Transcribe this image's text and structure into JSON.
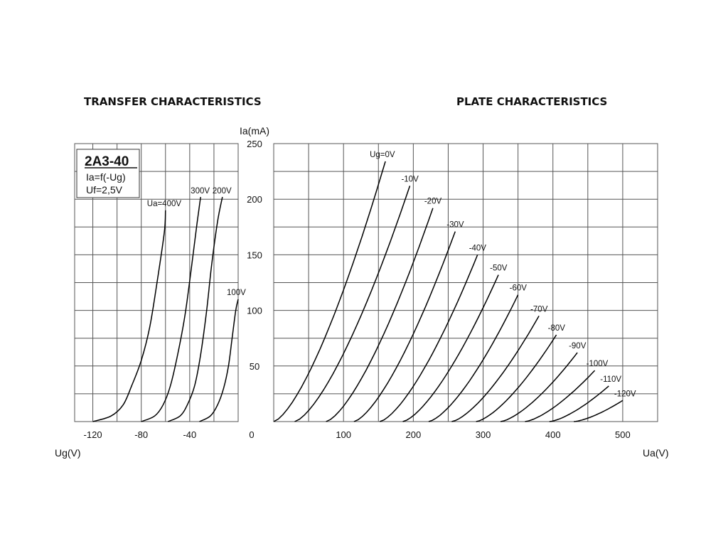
{
  "chart_data": [
    {
      "type": "line",
      "title": "TRANSFER CHARACTERISTICS",
      "xlabel": "Ug(V)",
      "ylabel": "",
      "xlim": [
        -135,
        0
      ],
      "ylim": [
        0,
        250
      ],
      "xticks": [
        -120,
        -80,
        -40
      ],
      "info_box": {
        "title": "2A3-40",
        "lines": [
          "Ia=f(-Ug)",
          "Uf=2,5V"
        ]
      },
      "series": [
        {
          "name": "Ua=400V",
          "label": "Ua=400V",
          "points": [
            [
              -120,
              0
            ],
            [
              -105,
              5
            ],
            [
              -95,
              15
            ],
            [
              -88,
              32
            ],
            [
              -80,
              55
            ],
            [
              -73,
              85
            ],
            [
              -67,
              125
            ],
            [
              -61,
              170
            ],
            [
              -60,
              190
            ]
          ]
        },
        {
          "name": "300V",
          "label": "300V",
          "points": [
            [
              -80,
              0
            ],
            [
              -69,
              5
            ],
            [
              -62,
              15
            ],
            [
              -56,
              32
            ],
            [
              -50,
              60
            ],
            [
              -44,
              95
            ],
            [
              -39,
              135
            ],
            [
              -34,
              178
            ],
            [
              -31,
              202
            ]
          ]
        },
        {
          "name": "200V",
          "label": "200V",
          "points": [
            [
              -58,
              0
            ],
            [
              -48,
              5
            ],
            [
              -42,
              15
            ],
            [
              -36,
              32
            ],
            [
              -31,
              60
            ],
            [
              -26,
              100
            ],
            [
              -22,
              140
            ],
            [
              -17,
              180
            ],
            [
              -13,
              202
            ]
          ]
        },
        {
          "name": "100V",
          "label": "100V",
          "points": [
            [
              -32,
              0
            ],
            [
              -23,
              5
            ],
            [
              -17,
              15
            ],
            [
              -12,
              30
            ],
            [
              -8,
              50
            ],
            [
              -5,
              75
            ],
            [
              -2,
              100
            ],
            [
              0,
              110
            ]
          ]
        }
      ]
    },
    {
      "type": "line",
      "title": "PLATE CHARACTERISTICS",
      "xlabel": "Ua(V)",
      "ylabel": "Ia(mA)",
      "xlim": [
        0,
        550
      ],
      "ylim": [
        0,
        250
      ],
      "xticks": [
        100,
        200,
        300,
        400,
        500
      ],
      "yticks": [
        50,
        100,
        150,
        200,
        250
      ],
      "origin_label": "0",
      "series": [
        {
          "name": "Ug=0V",
          "label": "Ug=0V",
          "u0": 0,
          "u1": 160,
          "ia1": 234
        },
        {
          "name": "-10V",
          "label": "-10V",
          "u0": 30,
          "u1": 195,
          "ia1": 212
        },
        {
          "name": "-20V",
          "label": "-20V",
          "u0": 75,
          "u1": 228,
          "ia1": 192
        },
        {
          "name": "-30V",
          "label": "-30V",
          "u0": 115,
          "u1": 260,
          "ia1": 171
        },
        {
          "name": "-40V",
          "label": "-40V",
          "u0": 152,
          "u1": 292,
          "ia1": 150
        },
        {
          "name": "-50V",
          "label": "-50V",
          "u0": 185,
          "u1": 322,
          "ia1": 132
        },
        {
          "name": "-60V",
          "label": "-60V",
          "u0": 222,
          "u1": 350,
          "ia1": 114
        },
        {
          "name": "-70V",
          "label": "-70V",
          "u0": 255,
          "u1": 380,
          "ia1": 95
        },
        {
          "name": "-80V",
          "label": "-80V",
          "u0": 290,
          "u1": 405,
          "ia1": 78
        },
        {
          "name": "-90V",
          "label": "-90V",
          "u0": 325,
          "u1": 435,
          "ia1": 62
        },
        {
          "name": "-100V",
          "label": "-100V",
          "u0": 360,
          "u1": 460,
          "ia1": 46
        },
        {
          "name": "-110V",
          "label": "-110V",
          "u0": 395,
          "u1": 480,
          "ia1": 32
        },
        {
          "name": "-120V",
          "label": "-120V",
          "u0": 430,
          "u1": 500,
          "ia1": 19
        }
      ]
    }
  ]
}
